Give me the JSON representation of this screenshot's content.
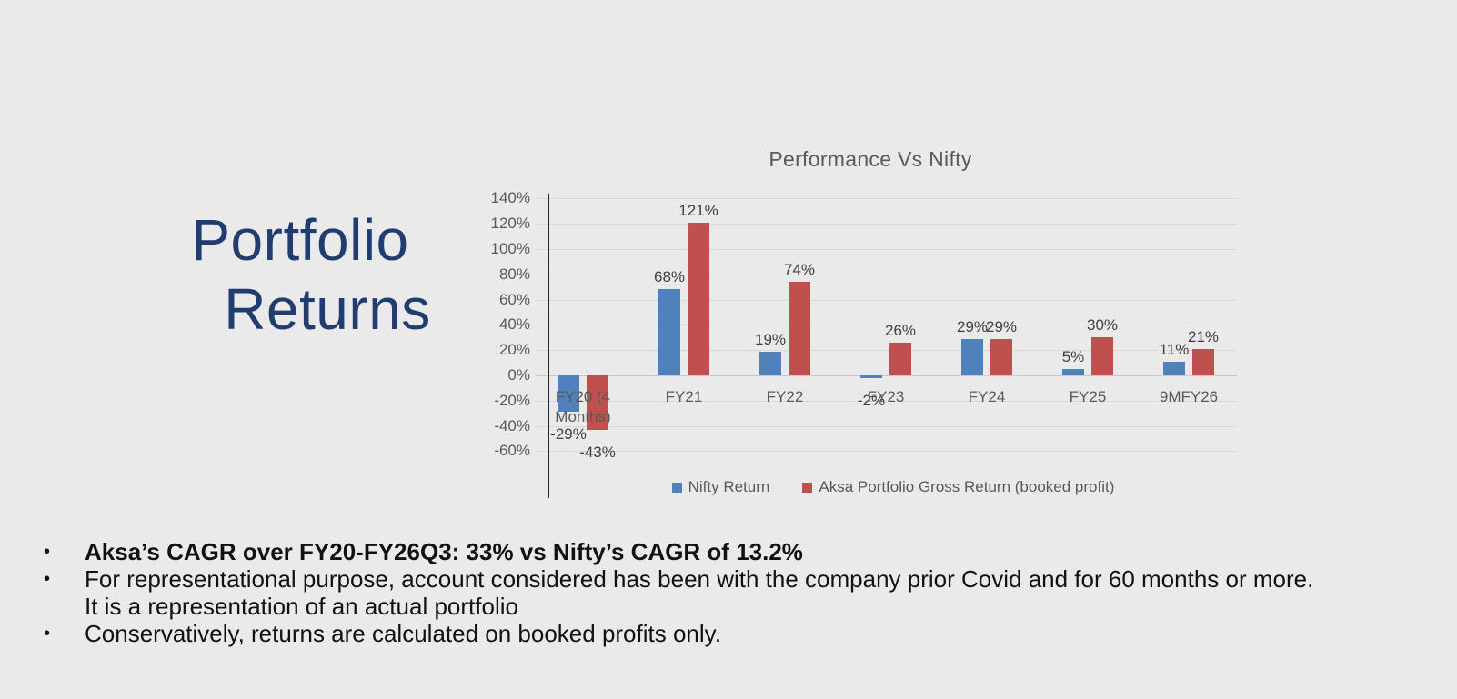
{
  "slide": {
    "title": {
      "line1": "Portfolio",
      "line2": "Returns"
    },
    "bullet_char": "•",
    "bullets": [
      {
        "text": "Aksa’s CAGR over FY20-FY26Q3: 33% vs Nifty’s CAGR of 13.2%",
        "bold": true
      },
      {
        "text": "For representational purpose, account considered has been with the company prior Covid and for 60 months or more.\nIt is a representation of an actual portfolio",
        "bold": false
      },
      {
        "text": "Conservatively, returns are calculated on booked profits only.",
        "bold": false
      }
    ]
  },
  "chart_data": {
    "type": "bar",
    "title": "Performance Vs Nifty",
    "categories": [
      "FY20 (4\nMonths)",
      "FY21",
      "FY22",
      "FY23",
      "FY24",
      "FY25",
      "9MFY26"
    ],
    "series": [
      {
        "name": "Nifty Return",
        "color": "#4F81BD",
        "values": [
          -29,
          68,
          19,
          -2,
          29,
          5,
          11
        ]
      },
      {
        "name": "Aksa Portfolio Gross Return (booked profit)",
        "color": "#C0504D",
        "values": [
          -43,
          121,
          74,
          26,
          29,
          30,
          21
        ]
      }
    ],
    "ylim": [
      -60,
      140
    ],
    "ytick_step": 20,
    "value_suffix": "%",
    "grid": true,
    "legend_position": "bottom",
    "colors": {
      "axis_text": "#595959",
      "data_label": "#404040",
      "gridline": "#D9D9D9",
      "axis_line": "#262626"
    }
  }
}
